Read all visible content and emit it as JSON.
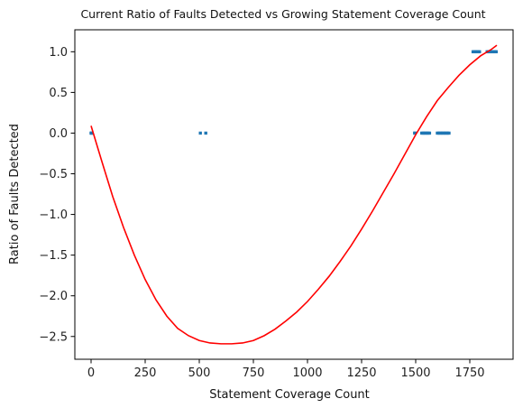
{
  "chart_data": {
    "type": "scatter",
    "title": "Current Ratio of Faults Detected vs Growing Statement Coverage Count",
    "xlabel": "Statement Coverage Count",
    "ylabel": "Ratio of Faults Detected",
    "xlim": [
      -75,
      1950
    ],
    "ylim": [
      -2.78,
      1.27
    ],
    "x_ticks": [
      0,
      250,
      500,
      750,
      1000,
      1250,
      1500,
      1750
    ],
    "y_ticks": [
      1.0,
      0.5,
      0.0,
      -0.5,
      -1.0,
      -1.5,
      -2.0,
      -2.5
    ],
    "grid": false,
    "legend": "none",
    "colors": {
      "points": "#1f77b4",
      "fit": "#ff0000"
    },
    "series": [
      {
        "type": "scatter",
        "points": [
          [
            0,
            0
          ],
          [
            2,
            0
          ],
          [
            4,
            0
          ],
          [
            505,
            0
          ],
          [
            530,
            0
          ],
          [
            1495,
            0
          ],
          [
            1497,
            0
          ],
          [
            1528,
            0
          ],
          [
            1534,
            0
          ],
          [
            1540,
            0
          ],
          [
            1546,
            0
          ],
          [
            1552,
            0
          ],
          [
            1558,
            0
          ],
          [
            1564,
            0
          ],
          [
            1600,
            0
          ],
          [
            1606,
            0
          ],
          [
            1612,
            0
          ],
          [
            1618,
            0
          ],
          [
            1624,
            0
          ],
          [
            1630,
            0
          ],
          [
            1636,
            0
          ],
          [
            1642,
            0
          ],
          [
            1648,
            0
          ],
          [
            1654,
            0
          ],
          [
            1765,
            1
          ],
          [
            1771,
            1
          ],
          [
            1777,
            1
          ],
          [
            1783,
            1
          ],
          [
            1789,
            1
          ],
          [
            1795,
            1
          ],
          [
            1830,
            1
          ],
          [
            1836,
            1
          ],
          [
            1842,
            1
          ],
          [
            1848,
            1
          ],
          [
            1854,
            1
          ],
          [
            1860,
            1
          ],
          [
            1866,
            1
          ],
          [
            1872,
            1
          ]
        ]
      },
      {
        "type": "line",
        "points": [
          [
            0,
            0.09
          ],
          [
            50,
            -0.35
          ],
          [
            100,
            -0.78
          ],
          [
            150,
            -1.16
          ],
          [
            200,
            -1.5
          ],
          [
            250,
            -1.8
          ],
          [
            300,
            -2.05
          ],
          [
            350,
            -2.25
          ],
          [
            400,
            -2.4
          ],
          [
            450,
            -2.49
          ],
          [
            500,
            -2.55
          ],
          [
            550,
            -2.58
          ],
          [
            600,
            -2.59
          ],
          [
            650,
            -2.59
          ],
          [
            700,
            -2.58
          ],
          [
            750,
            -2.55
          ],
          [
            800,
            -2.49
          ],
          [
            850,
            -2.41
          ],
          [
            900,
            -2.31
          ],
          [
            950,
            -2.2
          ],
          [
            1000,
            -2.07
          ],
          [
            1050,
            -1.92
          ],
          [
            1100,
            -1.76
          ],
          [
            1150,
            -1.58
          ],
          [
            1200,
            -1.39
          ],
          [
            1250,
            -1.18
          ],
          [
            1300,
            -0.96
          ],
          [
            1350,
            -0.73
          ],
          [
            1400,
            -0.5
          ],
          [
            1450,
            -0.26
          ],
          [
            1500,
            -0.02
          ],
          [
            1550,
            0.2
          ],
          [
            1600,
            0.4
          ],
          [
            1650,
            0.56
          ],
          [
            1700,
            0.71
          ],
          [
            1750,
            0.84
          ],
          [
            1800,
            0.95
          ],
          [
            1850,
            1.03
          ],
          [
            1875,
            1.08
          ]
        ]
      }
    ]
  }
}
